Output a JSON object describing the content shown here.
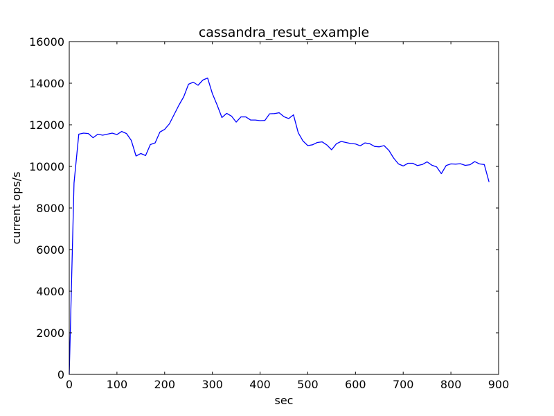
{
  "chart_data": {
    "type": "line",
    "title": "cassandra_resut_example",
    "xlabel": "sec",
    "ylabel": "current ops/s",
    "xlim": [
      0,
      900
    ],
    "ylim": [
      0,
      16000
    ],
    "xticks": [
      0,
      100,
      200,
      300,
      400,
      500,
      600,
      700,
      800,
      900
    ],
    "yticks": [
      0,
      2000,
      4000,
      6000,
      8000,
      10000,
      12000,
      14000,
      16000
    ],
    "grid": false,
    "legend": "none",
    "series": [
      {
        "color": "#0000ff",
        "x": [
          0,
          10,
          20,
          30,
          40,
          50,
          60,
          70,
          80,
          90,
          100,
          110,
          120,
          130,
          140,
          150,
          160,
          170,
          180,
          190,
          200,
          210,
          220,
          230,
          240,
          250,
          260,
          270,
          280,
          290,
          300,
          310,
          320,
          330,
          340,
          350,
          360,
          370,
          380,
          390,
          400,
          410,
          420,
          430,
          440,
          450,
          460,
          470,
          480,
          490,
          500,
          510,
          520,
          530,
          540,
          550,
          560,
          570,
          580,
          590,
          600,
          610,
          620,
          630,
          640,
          650,
          660,
          670,
          680,
          690,
          700,
          710,
          720,
          730,
          740,
          750,
          760,
          770,
          780,
          790,
          800,
          810,
          820,
          830,
          840,
          850,
          860,
          870,
          880
        ],
        "y": [
          0,
          9200,
          11550,
          11600,
          11580,
          11380,
          11550,
          11500,
          11550,
          11600,
          11530,
          11680,
          11580,
          11250,
          10500,
          10620,
          10520,
          11050,
          11130,
          11650,
          11780,
          12050,
          12500,
          12950,
          13350,
          13950,
          14050,
          13900,
          14150,
          14250,
          13500,
          12950,
          12350,
          12550,
          12420,
          12130,
          12380,
          12380,
          12230,
          12230,
          12200,
          12210,
          12530,
          12540,
          12580,
          12390,
          12300,
          12480,
          11620,
          11220,
          11000,
          11040,
          11150,
          11180,
          11030,
          10800,
          11090,
          11200,
          11150,
          11100,
          11080,
          10990,
          11130,
          11090,
          10960,
          10940,
          11000,
          10770,
          10400,
          10120,
          10020,
          10150,
          10150,
          10040,
          10090,
          10220,
          10060,
          9980,
          9650,
          10040,
          10120,
          10110,
          10130,
          10050,
          10080,
          10230,
          10120,
          10090,
          9250
        ]
      }
    ]
  }
}
